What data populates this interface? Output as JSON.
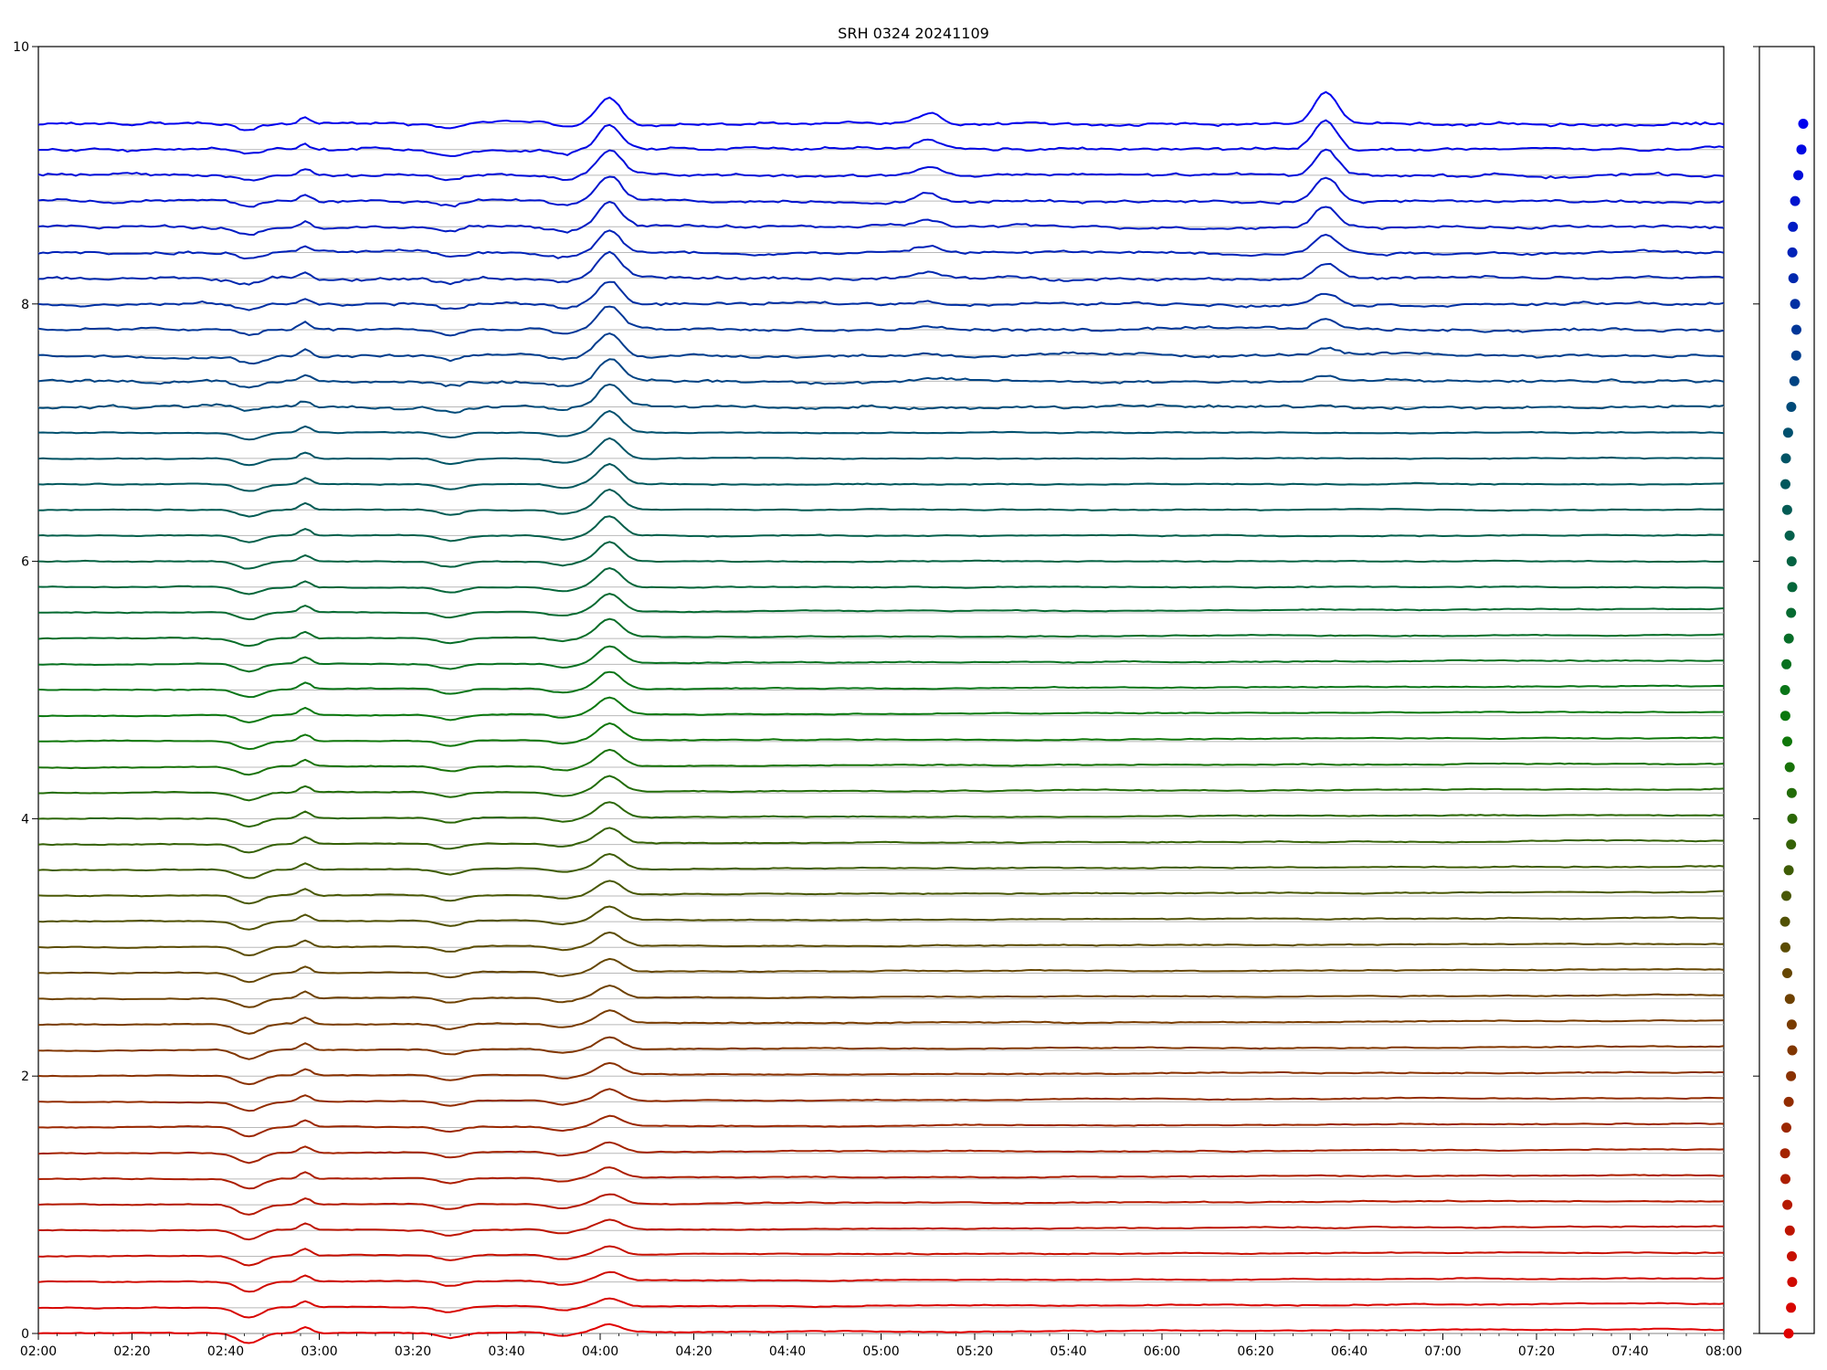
{
  "chart_data": {
    "type": "line",
    "title": "SRH 0324 20241109",
    "xlabel": "",
    "ylabel": "",
    "xlim": [
      "02:00",
      "08:00"
    ],
    "ylim": [
      0,
      10
    ],
    "grid": false,
    "x_tick_labels": [
      "02:00",
      "02:20",
      "02:40",
      "03:00",
      "03:20",
      "03:40",
      "04:00",
      "04:20",
      "04:40",
      "05:00",
      "05:20",
      "05:40",
      "06:00",
      "06:20",
      "06:40",
      "07:00",
      "07:20",
      "07:40",
      "08:00"
    ],
    "y_tick_labels": [
      "0",
      "2",
      "4",
      "6",
      "8",
      "10"
    ],
    "y_ticks": [
      0,
      2,
      4,
      6,
      8,
      10
    ],
    "series_count": 48,
    "baseline_start": 0.0,
    "baseline_step": 0.2,
    "common_events": [
      {
        "time": "02:45",
        "amplitude": -0.08,
        "kind": "dip"
      },
      {
        "time": "02:57",
        "amplitude": 0.05,
        "kind": "spike"
      },
      {
        "time": "03:28",
        "amplitude": -0.04,
        "kind": "dip"
      },
      {
        "time": "03:52",
        "amplitude": -0.03,
        "kind": "dip"
      },
      {
        "time": "04:02",
        "amplitude": 0.2,
        "kind": "peak"
      },
      {
        "time": "05:10",
        "amplitude": 0.08,
        "kind": "peak"
      },
      {
        "time": "06:35",
        "amplitude": 0.25,
        "kind": "peak"
      }
    ],
    "side_panel": {
      "type": "scatter",
      "color_gradient": [
        "#e00000",
        "#7a3a00",
        "#0a7a0a",
        "#004f70",
        "#0000ee"
      ],
      "points_count": 48
    }
  }
}
